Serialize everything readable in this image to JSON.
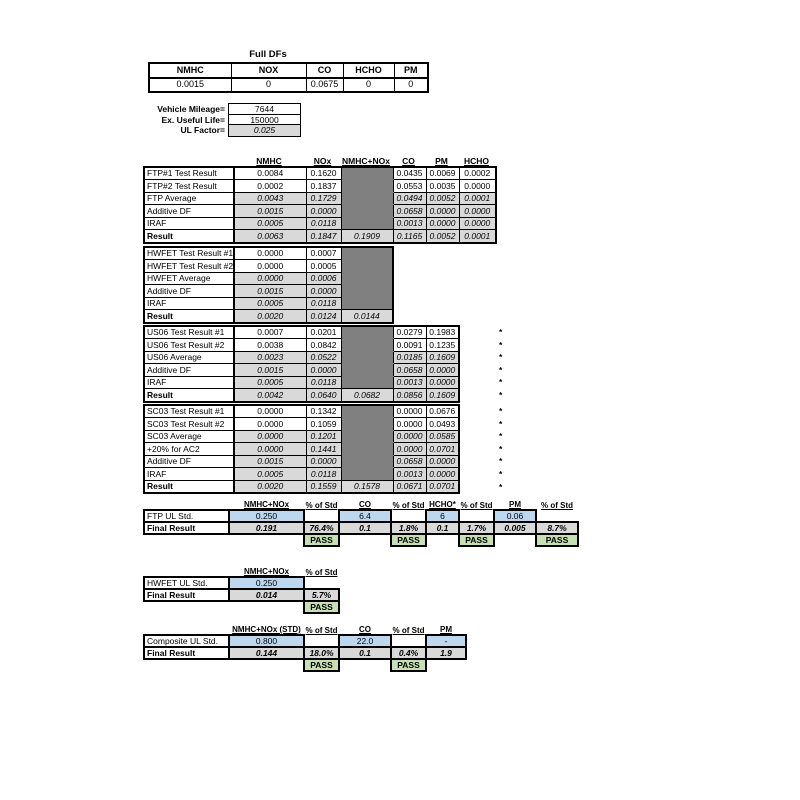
{
  "colors": {
    "dark": "#808080",
    "gray": "#d9d9d9",
    "blue": "#bdd7ee",
    "green": "#c6e0b4"
  },
  "full_dfs": {
    "title": "Full DFs",
    "headers": [
      "NMHC",
      "NOX",
      "CO",
      "HCHO",
      "PM"
    ],
    "values": [
      "0.0015",
      "0",
      "0.0675",
      "0",
      "0"
    ]
  },
  "vehicle_info": [
    {
      "label": "Vehicle Mileage=",
      "value": "7644"
    },
    {
      "label": "Ex. Useful Life=",
      "value": "150000"
    },
    {
      "label": "UL Factor=",
      "value": "0.025",
      "gray": true
    }
  ],
  "main_columns": [
    "NMHC",
    "NOx",
    "NMHC+NOx",
    "CO",
    "PM",
    "HCHO"
  ],
  "test_tables": [
    {
      "name": "FTP",
      "rows": [
        {
          "label": "FTP#1 Test Result",
          "cells": [
            {
              "v": "0.0084",
              "s": "w"
            },
            {
              "v": "0.1620",
              "s": "w"
            },
            {
              "s": "k"
            },
            {
              "v": "0.0435",
              "s": "w"
            },
            {
              "v": "0.0069",
              "s": "w"
            },
            {
              "v": "0.0002",
              "s": "w"
            }
          ]
        },
        {
          "label": "FTP#2 Test Result",
          "cells": [
            {
              "v": "0.0002",
              "s": "w"
            },
            {
              "v": "0.1837",
              "s": "w"
            },
            {
              "s": "k"
            },
            {
              "v": "0.0553",
              "s": "w"
            },
            {
              "v": "0.0035",
              "s": "w"
            },
            {
              "v": "0.0000",
              "s": "w"
            }
          ]
        },
        {
          "label": "FTP Average",
          "cells": [
            {
              "v": "0.0043",
              "s": "g"
            },
            {
              "v": "0.1729",
              "s": "g"
            },
            {
              "s": "k"
            },
            {
              "v": "0.0494",
              "s": "g"
            },
            {
              "v": "0.0052",
              "s": "g"
            },
            {
              "v": "0.0001",
              "s": "g"
            }
          ]
        },
        {
          "label": "Additive DF",
          "cells": [
            {
              "v": "0.0015",
              "s": "g"
            },
            {
              "v": "0.0000",
              "s": "g"
            },
            {
              "s": "k"
            },
            {
              "v": "0.0658",
              "s": "g"
            },
            {
              "v": "0.0000",
              "s": "g"
            },
            {
              "v": "0.0000",
              "s": "g"
            }
          ]
        },
        {
          "label": "IRAF",
          "cells": [
            {
              "v": "0.0005",
              "s": "g"
            },
            {
              "v": "0.0118",
              "s": "g"
            },
            {
              "s": "k"
            },
            {
              "v": "0.0013",
              "s": "g"
            },
            {
              "v": "0.0000",
              "s": "g"
            },
            {
              "v": "0.0000",
              "s": "g"
            }
          ]
        },
        {
          "label": "Result",
          "bold": true,
          "cells": [
            {
              "v": "0.0063",
              "s": "g"
            },
            {
              "v": "0.1847",
              "s": "g"
            },
            {
              "v": "0.1909",
              "s": "g"
            },
            {
              "v": "0.1165",
              "s": "g"
            },
            {
              "v": "0.0052",
              "s": "g"
            },
            {
              "v": "0.0001",
              "s": "g"
            }
          ]
        }
      ]
    },
    {
      "name": "HWFET",
      "rows": [
        {
          "label": "HWFET Test Result #1",
          "cells": [
            {
              "v": "0.0000",
              "s": "w"
            },
            {
              "v": "0.0007",
              "s": "w"
            },
            {
              "s": "k"
            },
            {
              "s": "n"
            },
            {
              "s": "n"
            },
            {
              "s": "n"
            }
          ]
        },
        {
          "label": "HWFET Test Result #2",
          "cells": [
            {
              "v": "0.0000",
              "s": "w"
            },
            {
              "v": "0.0005",
              "s": "w"
            },
            {
              "s": "k"
            },
            {
              "s": "n"
            },
            {
              "s": "n"
            },
            {
              "s": "n"
            }
          ]
        },
        {
          "label": "HWFET Average",
          "cells": [
            {
              "v": "0.0000",
              "s": "g"
            },
            {
              "v": "0.0006",
              "s": "g"
            },
            {
              "s": "k"
            },
            {
              "s": "n"
            },
            {
              "s": "n"
            },
            {
              "s": "n"
            }
          ]
        },
        {
          "label": "Additive DF",
          "cells": [
            {
              "v": "0.0015",
              "s": "g"
            },
            {
              "v": "0.0000",
              "s": "g"
            },
            {
              "s": "k"
            },
            {
              "s": "n"
            },
            {
              "s": "n"
            },
            {
              "s": "n"
            }
          ]
        },
        {
          "label": "IRAF",
          "cells": [
            {
              "v": "0.0005",
              "s": "g"
            },
            {
              "v": "0.0118",
              "s": "g"
            },
            {
              "s": "k"
            },
            {
              "s": "n"
            },
            {
              "s": "n"
            },
            {
              "s": "n"
            }
          ]
        },
        {
          "label": "Result",
          "bold": true,
          "cells": [
            {
              "v": "0.0020",
              "s": "g"
            },
            {
              "v": "0.0124",
              "s": "g"
            },
            {
              "v": "0.0144",
              "s": "g"
            },
            {
              "s": "n"
            },
            {
              "s": "n"
            },
            {
              "s": "n"
            }
          ]
        }
      ]
    },
    {
      "name": "US06",
      "rows": [
        {
          "label": "US06 Test Result #1",
          "star": true,
          "cells": [
            {
              "v": "0.0007",
              "s": "w"
            },
            {
              "v": "0.0201",
              "s": "w"
            },
            {
              "s": "k"
            },
            {
              "v": "0.0279",
              "s": "w"
            },
            {
              "v": "0.1983",
              "s": "w"
            },
            {
              "s": "n"
            }
          ]
        },
        {
          "label": "US06 Test Result #2",
          "star": true,
          "cells": [
            {
              "v": "0.0038",
              "s": "w"
            },
            {
              "v": "0.0842",
              "s": "w"
            },
            {
              "s": "k"
            },
            {
              "v": "0.0091",
              "s": "w"
            },
            {
              "v": "0.1235",
              "s": "w"
            },
            {
              "s": "n"
            }
          ]
        },
        {
          "label": "US06 Average",
          "star": true,
          "cells": [
            {
              "v": "0.0023",
              "s": "g"
            },
            {
              "v": "0.0522",
              "s": "g"
            },
            {
              "s": "k"
            },
            {
              "v": "0.0185",
              "s": "g"
            },
            {
              "v": "0.1609",
              "s": "g"
            },
            {
              "s": "n"
            }
          ]
        },
        {
          "label": "Additive DF",
          "star": true,
          "cells": [
            {
              "v": "0.0015",
              "s": "g"
            },
            {
              "v": "0.0000",
              "s": "g"
            },
            {
              "s": "k"
            },
            {
              "v": "0.0658",
              "s": "g"
            },
            {
              "v": "0.0000",
              "s": "g"
            },
            {
              "s": "n"
            }
          ]
        },
        {
          "label": "IRAF",
          "star": true,
          "cells": [
            {
              "v": "0.0005",
              "s": "g"
            },
            {
              "v": "0.0118",
              "s": "g"
            },
            {
              "s": "k"
            },
            {
              "v": "0.0013",
              "s": "g"
            },
            {
              "v": "0.0000",
              "s": "g"
            },
            {
              "s": "n"
            }
          ]
        },
        {
          "label": "Result",
          "bold": true,
          "star": true,
          "cells": [
            {
              "v": "0.0042",
              "s": "g"
            },
            {
              "v": "0.0640",
              "s": "g"
            },
            {
              "v": "0.0682",
              "s": "g"
            },
            {
              "v": "0.0856",
              "s": "g"
            },
            {
              "v": "0.1609",
              "s": "g"
            },
            {
              "s": "n"
            }
          ]
        }
      ]
    },
    {
      "name": "SC03",
      "rows": [
        {
          "label": "SC03 Test Result #1",
          "star": true,
          "cells": [
            {
              "v": "0.0000",
              "s": "w"
            },
            {
              "v": "0.1342",
              "s": "w"
            },
            {
              "s": "k"
            },
            {
              "v": "0.0000",
              "s": "w"
            },
            {
              "v": "0.0676",
              "s": "w"
            },
            {
              "s": "n"
            }
          ]
        },
        {
          "label": "SC03 Test Result #2",
          "star": true,
          "cells": [
            {
              "v": "0.0000",
              "s": "w"
            },
            {
              "v": "0.1059",
              "s": "w"
            },
            {
              "s": "k"
            },
            {
              "v": "0.0000",
              "s": "w"
            },
            {
              "v": "0.0493",
              "s": "w"
            },
            {
              "s": "n"
            }
          ]
        },
        {
          "label": "SC03 Average",
          "star": true,
          "cells": [
            {
              "v": "0.0000",
              "s": "g"
            },
            {
              "v": "0.1201",
              "s": "g"
            },
            {
              "s": "k"
            },
            {
              "v": "0.0000",
              "s": "g"
            },
            {
              "v": "0.0585",
              "s": "g"
            },
            {
              "s": "n"
            }
          ]
        },
        {
          "label": "+20% for AC2",
          "star": true,
          "cells": [
            {
              "v": "0.0000",
              "s": "g"
            },
            {
              "v": "0.1441",
              "s": "g"
            },
            {
              "s": "k"
            },
            {
              "v": "0.0000",
              "s": "g"
            },
            {
              "v": "0.0701",
              "s": "g"
            },
            {
              "s": "n"
            }
          ]
        },
        {
          "label": "Additive DF",
          "star": true,
          "cells": [
            {
              "v": "0.0015",
              "s": "g"
            },
            {
              "v": "0.0000",
              "s": "g"
            },
            {
              "s": "k"
            },
            {
              "v": "0.0658",
              "s": "g"
            },
            {
              "v": "0.0000",
              "s": "g"
            },
            {
              "s": "n"
            }
          ]
        },
        {
          "label": "IRAF",
          "star": true,
          "cells": [
            {
              "v": "0.0005",
              "s": "g"
            },
            {
              "v": "0.0118",
              "s": "g"
            },
            {
              "s": "k"
            },
            {
              "v": "0.0013",
              "s": "g"
            },
            {
              "v": "0.0000",
              "s": "g"
            },
            {
              "s": "n"
            }
          ]
        },
        {
          "label": "Result",
          "bold": true,
          "star": true,
          "cells": [
            {
              "v": "0.0020",
              "s": "g"
            },
            {
              "v": "0.1559",
              "s": "g"
            },
            {
              "v": "0.1578",
              "s": "g"
            },
            {
              "v": "0.0671",
              "s": "g"
            },
            {
              "v": "0.0701",
              "s": "g"
            },
            {
              "s": "n"
            }
          ]
        }
      ]
    }
  ],
  "std_tables": [
    {
      "name": "FTP",
      "std_label": "FTP UL Std.",
      "final_label": "Final Result",
      "cols": [
        {
          "h": "NMHC+NOx",
          "kind": "val",
          "std": "0.250",
          "final": "0.191"
        },
        {
          "h": "% of Std",
          "kind": "pct",
          "final": "76.4%",
          "pass": "PASS"
        },
        {
          "h": "CO",
          "kind": "val",
          "std": "6.4",
          "final": "0.1"
        },
        {
          "h": "% of Std",
          "kind": "pct",
          "final": "1.8%",
          "pass": "PASS"
        },
        {
          "h": "HCHO*",
          "kind": "val",
          "std": "6",
          "final": "0.1"
        },
        {
          "h": "% of Std",
          "kind": "pct",
          "final": "1.7%",
          "pass": "PASS"
        },
        {
          "h": "PM",
          "kind": "val",
          "std": "0.06",
          "final": "0.005"
        },
        {
          "h": "% of Std",
          "kind": "pct",
          "final": "8.7%",
          "pass": "PASS"
        }
      ]
    },
    {
      "name": "HWFET",
      "std_label": "HWFET UL Std.",
      "final_label": "Final Result",
      "cols": [
        {
          "h": "NMHC+NOx",
          "kind": "val",
          "std": "0.250",
          "final": "0.014"
        },
        {
          "h": "% of Std",
          "kind": "pct",
          "final": "5.7%",
          "pass": "PASS"
        }
      ]
    },
    {
      "name": "Composite",
      "std_label": "Composite UL Std.",
      "final_label": "Final Result",
      "cols": [
        {
          "h": "NMHC+NOx (STD)",
          "kind": "val",
          "std": "0.800",
          "final": "0.144"
        },
        {
          "h": "% of Std",
          "kind": "pct",
          "final": "18.0%",
          "pass": "PASS"
        },
        {
          "h": "CO",
          "kind": "val",
          "std": "22.0",
          "final": "0.1"
        },
        {
          "h": "% of Std",
          "kind": "pct",
          "final": "0.4%",
          "pass": "PASS"
        },
        {
          "h": "PM",
          "kind": "val",
          "std": "-",
          "final": "1.9"
        }
      ]
    }
  ]
}
